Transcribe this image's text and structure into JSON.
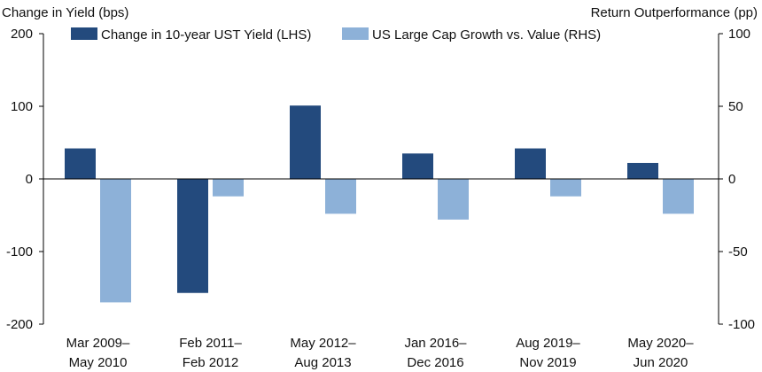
{
  "chart_data": {
    "type": "bar",
    "ylabel_left": "Change in Yield (bps)",
    "ylabel_right": "Return Outperformance (pp)",
    "categories": [
      [
        "Mar 2009–",
        "May 2010"
      ],
      [
        "Feb 2011–",
        "Feb 2012"
      ],
      [
        "May 2012–",
        "Aug 2013"
      ],
      [
        "Jan 2016–",
        "Dec 2016"
      ],
      [
        "Aug 2019–",
        "Nov 2019"
      ],
      [
        "May 2020–",
        "Jun 2020"
      ]
    ],
    "ylim_left": [
      -200,
      200
    ],
    "ylim_right": [
      -100,
      100
    ],
    "yticks_left": [
      "200",
      "100",
      "0",
      "-100",
      "-200"
    ],
    "yticks_right": [
      "100",
      "50",
      "0",
      "-50",
      "-100"
    ],
    "grid": false,
    "legend_position": "top",
    "series": [
      {
        "name": "Change in 10-year UST Yield (LHS)",
        "axis": "left",
        "color": "#234a7d",
        "values": [
          42,
          -157,
          101,
          35,
          42,
          22
        ]
      },
      {
        "name": "US Large Cap Growth vs. Value (RHS)",
        "axis": "right",
        "color": "#8db1d8",
        "values": [
          -85,
          -12,
          -24,
          -28,
          -12,
          -24
        ]
      }
    ]
  }
}
